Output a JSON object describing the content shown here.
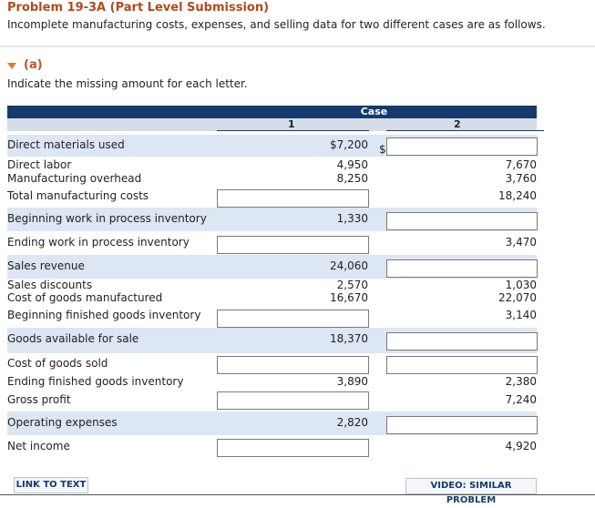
{
  "header": {
    "title": "Problem 19-3A (Part Level Submission)",
    "description": "Incomplete manufacturing costs, expenses, and selling data for two different cases are as follows."
  },
  "part": {
    "label": "(a)",
    "instruction": "Indicate the missing amount for each letter."
  },
  "table": {
    "group_header": "Case",
    "col1": "1",
    "col2": "2",
    "dollar_sign": "$",
    "rows": [
      {
        "label": "Direct materials used",
        "c1": "$7,200",
        "c2": ""
      },
      {
        "label": "Direct labor",
        "c1": "4,950",
        "c2": "7,670"
      },
      {
        "label": "Manufacturing overhead",
        "c1": "8,250",
        "c2": "3,760"
      },
      {
        "label": "Total manufacturing costs",
        "c1": "",
        "c2": "18,240"
      },
      {
        "label": "Beginning work in process inventory",
        "c1": "1,330",
        "c2": ""
      },
      {
        "label": "Ending work in process inventory",
        "c1": "",
        "c2": "3,470"
      },
      {
        "label": "Sales revenue",
        "c1": "24,060",
        "c2": ""
      },
      {
        "label": "Sales discounts",
        "c1": "2,570",
        "c2": "1,030"
      },
      {
        "label": "Cost of goods manufactured",
        "c1": "16,670",
        "c2": "22,070"
      },
      {
        "label": "Beginning finished goods inventory",
        "c1": "",
        "c2": "3,140"
      },
      {
        "label": "Goods available for sale",
        "c1": "18,370",
        "c2": ""
      },
      {
        "label": "Cost of goods sold",
        "c1": "",
        "c2": ""
      },
      {
        "label": "Ending finished goods inventory",
        "c1": "3,890",
        "c2": "2,380"
      },
      {
        "label": "Gross profit",
        "c1": "",
        "c2": "7,240"
      },
      {
        "label": "Operating expenses",
        "c1": "2,820",
        "c2": ""
      },
      {
        "label": "Net income",
        "c1": "",
        "c2": "4,920"
      }
    ]
  },
  "buttons": {
    "link_to_text": "LINK TO TEXT",
    "video": "VIDEO: SIMILAR PROBLEM"
  }
}
